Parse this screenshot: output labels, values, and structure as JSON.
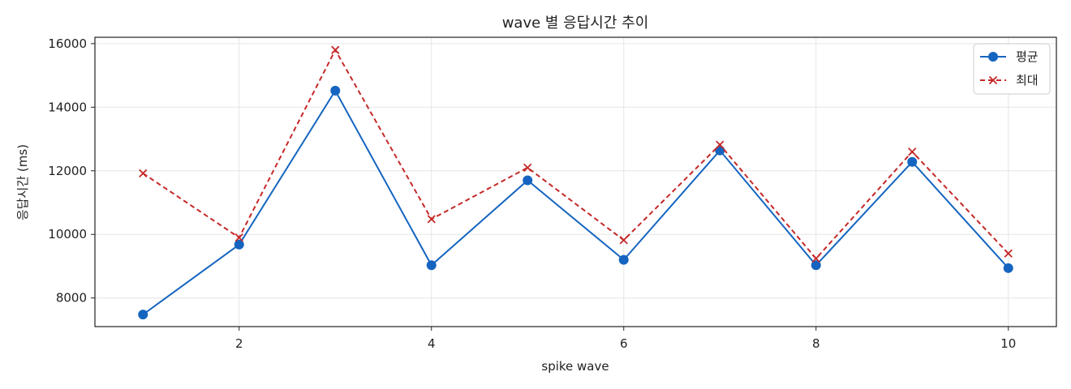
{
  "chart_data": {
    "type": "line",
    "title": "wave 별 응답시간 추이",
    "xlabel": "spike wave",
    "ylabel": "응답시간 (ms)",
    "x": [
      1,
      2,
      3,
      4,
      5,
      6,
      7,
      8,
      9,
      10
    ],
    "xlim": [
      0.5,
      10.5
    ],
    "ylim": [
      7100,
      16200
    ],
    "xticks": [
      2,
      4,
      6,
      8,
      10
    ],
    "yticks": [
      8000,
      10000,
      12000,
      14000,
      16000
    ],
    "grid": true,
    "legend_position": "top-right",
    "series": [
      {
        "name": "평균",
        "values": [
          7480,
          9680,
          14520,
          9030,
          11700,
          9200,
          12640,
          9030,
          12280,
          8940
        ],
        "color": "#1565c0",
        "line_style": "solid",
        "marker": "circle"
      },
      {
        "name": "최대",
        "values": [
          11920,
          9900,
          15800,
          10480,
          12100,
          9820,
          12820,
          9240,
          12600,
          9400
        ],
        "color": "#c62828",
        "line_style": "dashed",
        "marker": "x"
      }
    ]
  }
}
